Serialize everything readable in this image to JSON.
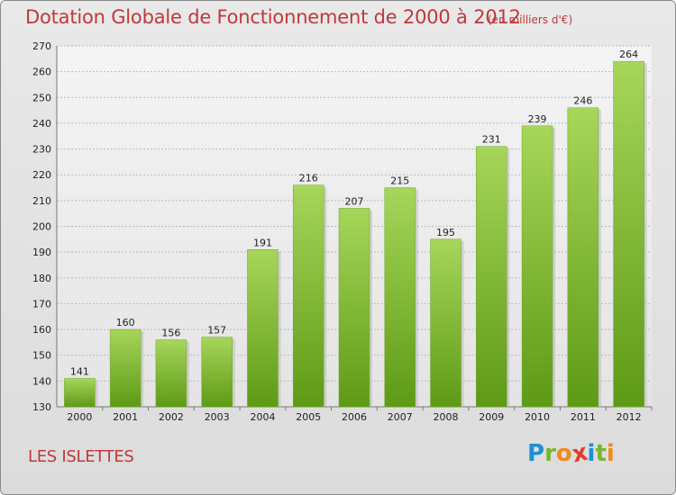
{
  "title": "Dotation Globale de Fonctionnement de 2000 à 2012",
  "subtitle": "(en milliers d'€)",
  "location": "LES ISLETTES",
  "logo": {
    "text": "Proxiti",
    "letters": [
      "P",
      "r",
      "o",
      "x",
      "i",
      "t",
      "i"
    ],
    "colors": [
      "#1f8fd6",
      "#7ab62c",
      "#f08a1c",
      "#e23b2e",
      "#1f8fd6",
      "#7ab62c",
      "#f08a1c"
    ]
  },
  "colors": {
    "bar_light": "#a6d65a",
    "bar_dark": "#5e9a16",
    "text_accent": "#c0393b"
  },
  "chart_data": {
    "type": "bar",
    "categories": [
      "2000",
      "2001",
      "2002",
      "2003",
      "2004",
      "2005",
      "2006",
      "2007",
      "2008",
      "2009",
      "2010",
      "2011",
      "2012"
    ],
    "values": [
      141,
      160,
      156,
      157,
      191,
      216,
      207,
      215,
      195,
      231,
      239,
      246,
      264
    ],
    "data_labels": [
      "141",
      "160",
      "156",
      "157",
      "191",
      "216",
      "207",
      "215",
      "195",
      "231",
      "239",
      "246",
      "264"
    ],
    "ylim": [
      130,
      270
    ],
    "yticks": [
      130,
      140,
      150,
      160,
      170,
      180,
      190,
      200,
      210,
      220,
      230,
      240,
      250,
      260,
      270
    ],
    "title": "Dotation Globale de Fonctionnement de 2000 à 2012",
    "xlabel": "",
    "ylabel": "",
    "grid": true,
    "legend": "none"
  }
}
